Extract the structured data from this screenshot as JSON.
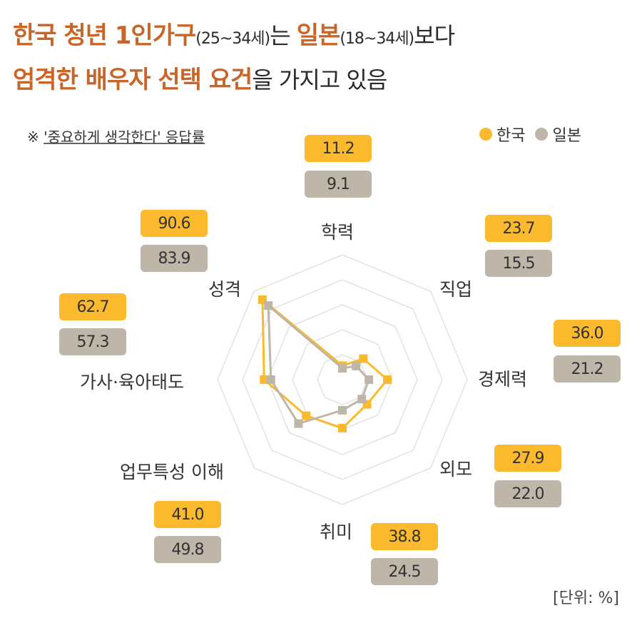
{
  "title": {
    "line1": [
      {
        "text": "한국 청년 1인가구",
        "style": "hl"
      },
      {
        "text": "(25~34세)",
        "style": "sm"
      },
      {
        "text": "는 ",
        "style": "dk"
      },
      {
        "text": "일본",
        "style": "hl"
      },
      {
        "text": "(18~34세)",
        "style": "sm"
      },
      {
        "text": "보다",
        "style": "dk"
      }
    ],
    "line2": [
      {
        "text": "엄격한 배우자 선택 요건",
        "style": "hl"
      },
      {
        "text": "을 가지고 있음",
        "style": "dk"
      }
    ]
  },
  "note": {
    "mark": "※ ",
    "text": "'중요하게 생각한다' 응답률"
  },
  "legend": [
    {
      "label": "한국",
      "color": "#fbb92d"
    },
    {
      "label": "일본",
      "color": "#bdb6a9"
    }
  ],
  "unit": "[단위: %]",
  "colors": {
    "korea": "#fbb92d",
    "japan": "#bdb6a9",
    "grid": "#e2e2e2",
    "title_accent": "#c8662a"
  },
  "chart_data": {
    "type": "radar",
    "title": "한국 청년 1인가구(25~34세)는 일본(18~34세)보다 엄격한 배우자 선택 요건을 가지고 있음",
    "subtitle": "※ '중요하게 생각한다' 응답률",
    "unit": "%",
    "categories": [
      "학력",
      "직업",
      "경제력",
      "외모",
      "취미",
      "업무특성 이해",
      "가사·육아태도",
      "성격"
    ],
    "series": [
      {
        "name": "한국",
        "color": "#fbb92d",
        "values": [
          11.2,
          23.7,
          36.0,
          27.9,
          38.8,
          41.0,
          62.7,
          90.6
        ]
      },
      {
        "name": "일본",
        "color": "#bdb6a9",
        "values": [
          9.1,
          15.5,
          21.2,
          22.0,
          24.5,
          49.8,
          57.3,
          83.9
        ]
      }
    ],
    "range": [
      0,
      100
    ],
    "grid_rings": 5,
    "legend_position": "top-right"
  },
  "labels": [
    {
      "name": "학력",
      "kr": "11.2",
      "jp": "9.1"
    },
    {
      "name": "직업",
      "kr": "23.7",
      "jp": "15.5"
    },
    {
      "name": "경제력",
      "kr": "36.0",
      "jp": "21.2"
    },
    {
      "name": "외모",
      "kr": "27.9",
      "jp": "22.0"
    },
    {
      "name": "취미",
      "kr": "38.8",
      "jp": "24.5"
    },
    {
      "name": "업무특성 이해",
      "kr": "41.0",
      "jp": "49.8"
    },
    {
      "name": "가사·육아태도",
      "kr": "62.7",
      "jp": "57.3"
    },
    {
      "name": "성격",
      "kr": "90.6",
      "jp": "83.9"
    }
  ]
}
